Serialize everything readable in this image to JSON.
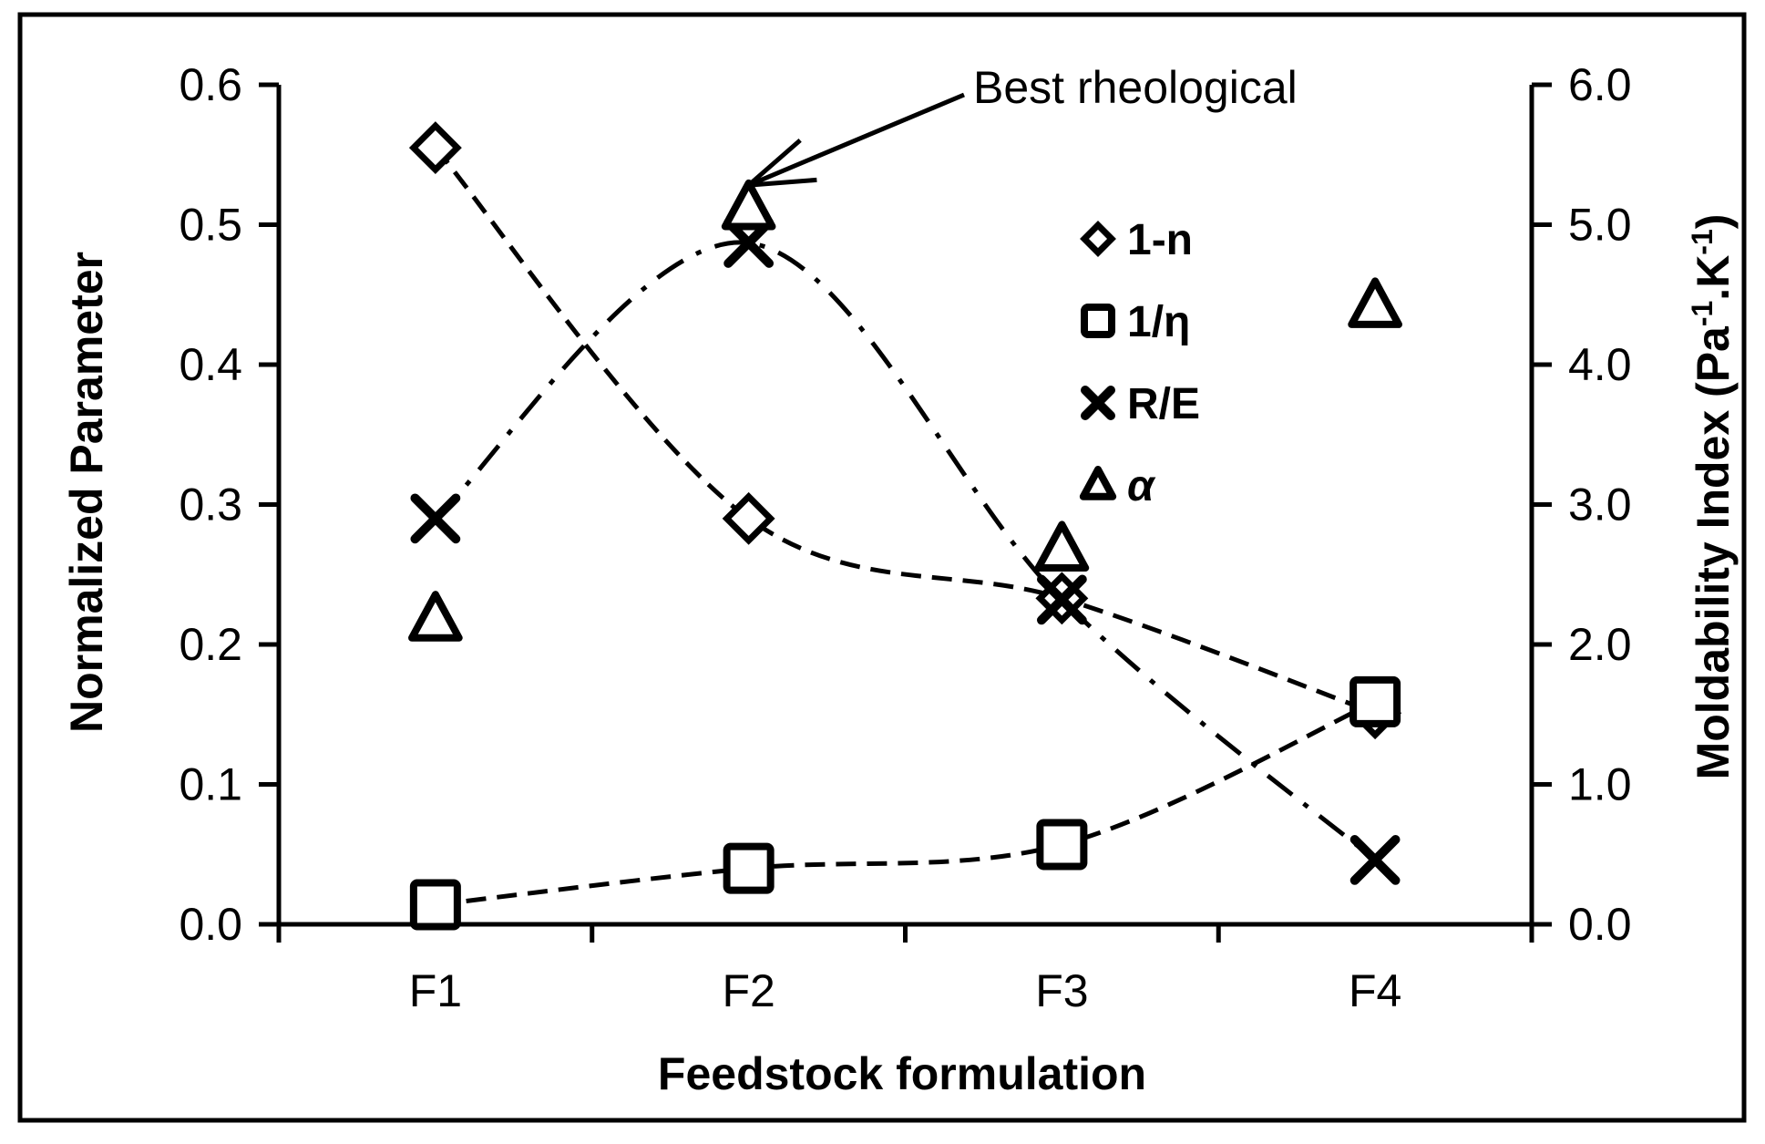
{
  "chart_data": {
    "type": "scatter",
    "categories": [
      "F1",
      "F2",
      "F3",
      "F4"
    ],
    "xlabel": "Feedstock formulation",
    "ylabel": "Normalized Parameter",
    "y2label_main": "Moldability Index (Pa",
    "y2label_sup1": "-1",
    "y2label_mid": ".K",
    "y2label_sup2": "-1",
    "y2label_end": ")",
    "ylim": [
      0,
      0.6
    ],
    "y2lim": [
      0,
      6.0
    ],
    "yticks": [
      "0.0",
      "0.1",
      "0.2",
      "0.3",
      "0.4",
      "0.5",
      "0.6"
    ],
    "y2ticks": [
      "0.0",
      "1.0",
      "2.0",
      "3.0",
      "4.0",
      "5.0",
      "6.0"
    ],
    "grid": false,
    "legend_position": "top-right inside",
    "series": [
      {
        "name": "1-n",
        "marker": "diamond",
        "axis": "left",
        "trendline": "dashed",
        "values": [
          0.555,
          0.29,
          0.233,
          0.151
        ]
      },
      {
        "name": "1/η",
        "marker": "square",
        "axis": "left",
        "trendline": "dashed",
        "values": [
          0.014,
          0.04,
          0.057,
          0.159
        ]
      },
      {
        "name": "R/E",
        "marker": "x",
        "axis": "left",
        "trendline": "dash-dot",
        "values": [
          0.29,
          0.487,
          0.232,
          0.046
        ]
      },
      {
        "name": "α",
        "marker": "triangle",
        "axis": "right",
        "trendline": "none",
        "values": [
          2.18,
          5.12,
          2.68,
          4.42
        ]
      }
    ],
    "annotation": {
      "text": "Best rheological",
      "target_category": "F2",
      "target_value": 0.51
    }
  }
}
